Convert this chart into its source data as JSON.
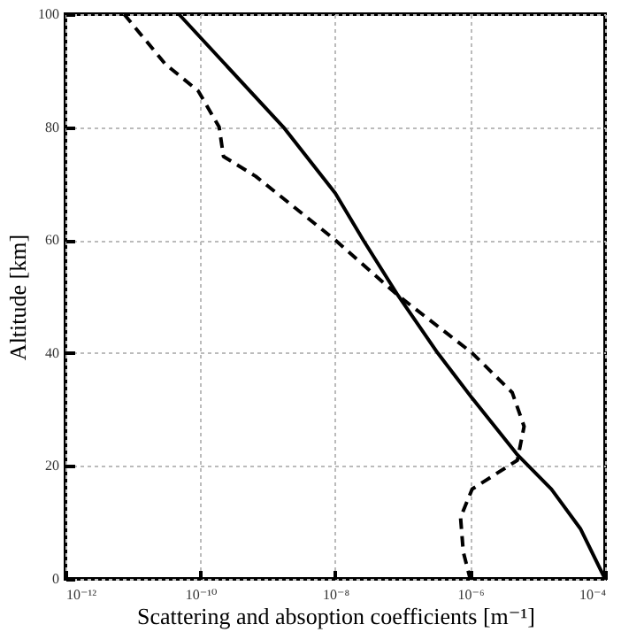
{
  "chart_data": {
    "type": "line",
    "xlabel": "Scattering and absoption coefficients [m⁻¹]",
    "ylabel": "Altitude [km]",
    "log": "x",
    "grid": true,
    "xlim": [
      1e-12,
      0.0001
    ],
    "xticks": [
      {
        "value": 1e-12,
        "label": "10⁻¹²"
      },
      {
        "value": 1e-10,
        "label": "10⁻¹⁰"
      },
      {
        "value": 1e-08,
        "label": "10⁻⁸"
      },
      {
        "value": 1e-06,
        "label": "10⁻⁶"
      },
      {
        "value": 0.0001,
        "label": "10⁻⁴"
      }
    ],
    "ylim": [
      0,
      100
    ],
    "yticks": [
      0,
      20,
      40,
      60,
      80,
      100
    ],
    "series": [
      {
        "color": "#000000",
        "line_style": "solid",
        "x": [
          4.8e-11,
          1.7e-09,
          1e-08,
          2.6e-08,
          8.5e-08,
          3.3e-07,
          1.07e-06,
          5e-06,
          1.6e-05,
          4.3e-05,
          0.0001
        ],
        "values": [
          100,
          80,
          68.3,
          60,
          50.2,
          40,
          32,
          22,
          15.9,
          8.9,
          0
        ]
      },
      {
        "color": "#000000",
        "line_style": "dashed",
        "x": [
          7.4e-12,
          3e-11,
          9.3e-11,
          1.9e-10,
          2.2e-10,
          6.6e-10,
          1e-08,
          8.5e-08,
          1.07e-06,
          4.2e-06,
          6.3e-06,
          5e-06,
          1.07e-06,
          7.2e-07,
          7.9e-07,
          1e-06
        ],
        "values": [
          100,
          91.2,
          86.4,
          80,
          74.8,
          71.3,
          60,
          50.2,
          40,
          33,
          27,
          21,
          15.9,
          10.9,
          4.8,
          0
        ]
      }
    ]
  }
}
